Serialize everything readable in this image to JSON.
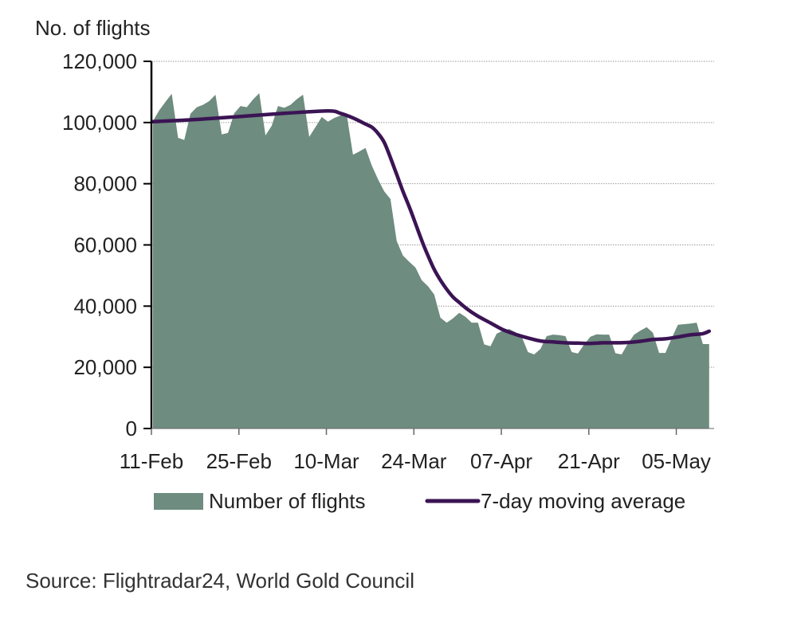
{
  "chart_data": {
    "type": "area",
    "title": "",
    "ylabel": "No. of flights",
    "xlabel": "",
    "ylim": [
      0,
      120000
    ],
    "yticks": [
      0,
      20000,
      40000,
      60000,
      80000,
      100000,
      120000
    ],
    "ytick_labels": [
      "0",
      "20,000",
      "40,000",
      "60,000",
      "80,000",
      "100,000",
      "120,000"
    ],
    "xtick_labels": [
      "11-Feb",
      "25-Feb",
      "10-Mar",
      "24-Mar",
      "07-Apr",
      "21-Apr",
      "05-May"
    ],
    "xtick_day_offsets": [
      0,
      14,
      28,
      42,
      56,
      70,
      84
    ],
    "x_start_date": "11-Feb",
    "x_range_days": [
      0,
      90
    ],
    "grid": "horizontal-dotted",
    "legend_position": "bottom",
    "colors": {
      "area": "#6e8c7f",
      "line": "#3b1454",
      "grid": "#9a9a9a",
      "axis": "#000000"
    },
    "series": [
      {
        "name": "Number of flights",
        "type": "area",
        "day_offsets": [
          0,
          1,
          2,
          3,
          4,
          5,
          6,
          7,
          8,
          9,
          10,
          11,
          12,
          13,
          14,
          15,
          16,
          17,
          18,
          19,
          20,
          21,
          22,
          23,
          24,
          25,
          26,
          27,
          28,
          29,
          30,
          31,
          32,
          33,
          34,
          35,
          36,
          37,
          38,
          39,
          40,
          41,
          42,
          43,
          44,
          45,
          46,
          47,
          48,
          49,
          50,
          51,
          52,
          53,
          54,
          55,
          56,
          57,
          58,
          59,
          60,
          61,
          62,
          63,
          64,
          65,
          66,
          67,
          68,
          69,
          70,
          71,
          72,
          73,
          74,
          75,
          76,
          77,
          78,
          79,
          80,
          81,
          82,
          83,
          84,
          85,
          86,
          87,
          88,
          89
        ],
        "values": [
          100500,
          104000,
          106800,
          109400,
          95000,
          94300,
          102900,
          105000,
          105800,
          107000,
          109100,
          96100,
          96600,
          103000,
          105400,
          105000,
          107500,
          109600,
          95800,
          99000,
          105400,
          104800,
          105800,
          107600,
          109100,
          95300,
          98500,
          101800,
          100300,
          101500,
          102300,
          102600,
          89500,
          90500,
          91700,
          86000,
          81500,
          77500,
          75000,
          61200,
          56500,
          54500,
          52600,
          48500,
          46500,
          43800,
          36200,
          34600,
          36000,
          37800,
          36500,
          34600,
          34600,
          27500,
          26900,
          31000,
          32000,
          32500,
          31500,
          30000,
          25000,
          24200,
          26000,
          30200,
          30700,
          30500,
          30200,
          25000,
          24500,
          27500,
          30000,
          30800,
          30700,
          30700,
          24600,
          24200,
          27800,
          30700,
          32000,
          33100,
          31300,
          24700,
          24700,
          29500,
          33900,
          34100,
          34300,
          34600,
          27600,
          27600
        ]
      },
      {
        "name": "7-day moving average",
        "type": "line",
        "day_offsets": [
          0,
          7,
          14,
          21,
          28,
          30,
          32,
          34,
          35,
          36,
          37,
          38,
          39,
          40,
          41,
          42,
          43,
          44,
          45,
          46,
          47,
          48,
          49,
          50,
          51,
          52,
          54,
          56,
          58,
          60,
          62,
          64,
          66,
          68,
          70,
          72,
          74,
          76,
          78,
          80,
          82,
          84,
          86,
          88,
          89
        ],
        "values": [
          100300,
          101000,
          102000,
          103000,
          103800,
          103000,
          101500,
          99500,
          98500,
          96500,
          93500,
          88500,
          83000,
          77500,
          72500,
          67000,
          61500,
          56500,
          52000,
          48500,
          45500,
          43000,
          41200,
          39500,
          38000,
          36700,
          34500,
          32300,
          30800,
          29600,
          28600,
          28300,
          28000,
          27900,
          27800,
          28000,
          28000,
          28100,
          28500,
          29100,
          29300,
          29900,
          30600,
          31000,
          31800
        ]
      }
    ]
  },
  "legend": {
    "items": [
      {
        "label": "Number of flights",
        "kind": "area-swatch"
      },
      {
        "label": "7-day moving average",
        "kind": "line-swatch"
      }
    ]
  },
  "source": "Source: Flightradar24, World Gold Council"
}
